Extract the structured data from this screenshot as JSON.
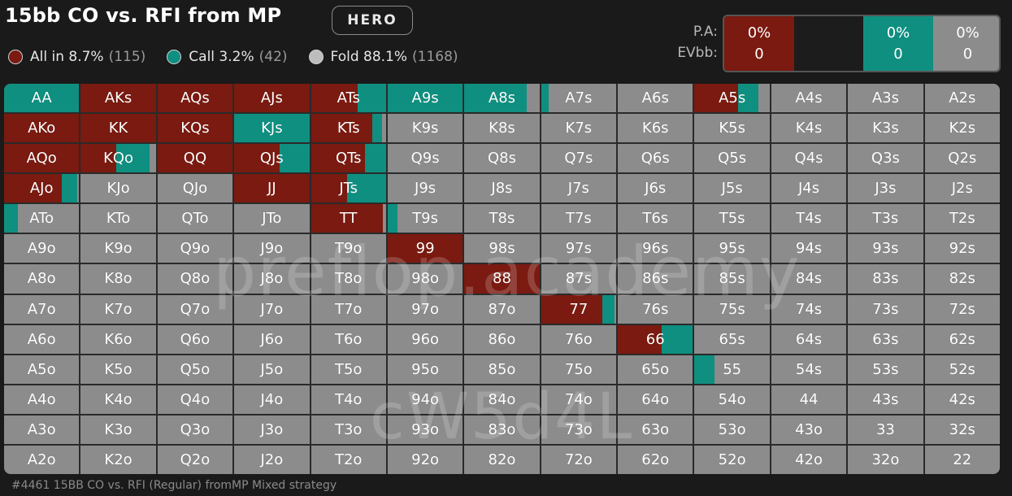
{
  "header": {
    "title": "15bb CO vs. RFI from MP",
    "hero_label": "HERO"
  },
  "legend": [
    {
      "label": "All in 8.7%",
      "count": "(115)",
      "color": "#7a1a10"
    },
    {
      "label": "Call 3.2%",
      "count": "(42)",
      "color": "#0f8f80"
    },
    {
      "label": "Fold 88.1%",
      "count": "(1168)",
      "color": "#bdbdbd"
    }
  ],
  "summary": {
    "pa_label": "P.A:",
    "ev_label": "EVbb:",
    "segments": [
      {
        "pa": "0%",
        "ev": "0",
        "color": "#7a1a10",
        "frac": 0.087
      },
      {
        "pa": "",
        "ev": "",
        "color": "#1c1c1c",
        "frac": 0.0
      },
      {
        "pa": "0%",
        "ev": "0",
        "color": "#0f8f80",
        "frac": 0.032
      },
      {
        "pa": "0%",
        "ev": "0",
        "color": "#8c8c8c",
        "frac": 0.881
      }
    ]
  },
  "colors": {
    "allin": "#7a1a10",
    "call": "#0f8f80",
    "fold": "#8c8c8c"
  },
  "grid": {
    "labels": [
      [
        "AA",
        "AKs",
        "AQs",
        "AJs",
        "ATs",
        "A9s",
        "A8s",
        "A7s",
        "A6s",
        "A5s",
        "A4s",
        "A3s",
        "A2s"
      ],
      [
        "AKo",
        "KK",
        "KQs",
        "KJs",
        "KTs",
        "K9s",
        "K8s",
        "K7s",
        "K6s",
        "K5s",
        "K4s",
        "K3s",
        "K2s"
      ],
      [
        "AQo",
        "KQo",
        "QQ",
        "QJs",
        "QTs",
        "Q9s",
        "Q8s",
        "Q7s",
        "Q6s",
        "Q5s",
        "Q4s",
        "Q3s",
        "Q2s"
      ],
      [
        "AJo",
        "KJo",
        "QJo",
        "JJ",
        "JTs",
        "J9s",
        "J8s",
        "J7s",
        "J6s",
        "J5s",
        "J4s",
        "J3s",
        "J2s"
      ],
      [
        "ATo",
        "KTo",
        "QTo",
        "JTo",
        "TT",
        "T9s",
        "T8s",
        "T7s",
        "T6s",
        "T5s",
        "T4s",
        "T3s",
        "T2s"
      ],
      [
        "A9o",
        "K9o",
        "Q9o",
        "J9o",
        "T9o",
        "99",
        "98s",
        "97s",
        "96s",
        "95s",
        "94s",
        "93s",
        "92s"
      ],
      [
        "A8o",
        "K8o",
        "Q8o",
        "J8o",
        "T8o",
        "98o",
        "88",
        "87s",
        "86s",
        "85s",
        "84s",
        "83s",
        "82s"
      ],
      [
        "A7o",
        "K7o",
        "Q7o",
        "J7o",
        "T7o",
        "97o",
        "87o",
        "77",
        "76s",
        "75s",
        "74s",
        "73s",
        "72s"
      ],
      [
        "A6o",
        "K6o",
        "Q6o",
        "J6o",
        "T6o",
        "96o",
        "86o",
        "76o",
        "66",
        "65s",
        "64s",
        "63s",
        "62s"
      ],
      [
        "A5o",
        "K5o",
        "Q5o",
        "J5o",
        "T5o",
        "95o",
        "85o",
        "75o",
        "65o",
        "55",
        "54s",
        "53s",
        "52s"
      ],
      [
        "A4o",
        "K4o",
        "Q4o",
        "J4o",
        "T4o",
        "94o",
        "84o",
        "74o",
        "64o",
        "54o",
        "44",
        "43s",
        "42s"
      ],
      [
        "A3o",
        "K3o",
        "Q3o",
        "J3o",
        "T3o",
        "93o",
        "83o",
        "73o",
        "63o",
        "53o",
        "43o",
        "33",
        "32s"
      ],
      [
        "A2o",
        "K2o",
        "Q2o",
        "J2o",
        "T2o",
        "92o",
        "82o",
        "72o",
        "62o",
        "52o",
        "42o",
        "32o",
        "22"
      ]
    ],
    "strategy": {
      "AA": {
        "allin": 0.0,
        "call": 1.0
      },
      "AKs": {
        "allin": 1.0,
        "call": 0.0
      },
      "AQs": {
        "allin": 1.0,
        "call": 0.0
      },
      "AJs": {
        "allin": 1.0,
        "call": 0.0
      },
      "ATs": {
        "allin": 0.62,
        "call": 0.38
      },
      "A9s": {
        "allin": 0.0,
        "call": 1.0
      },
      "A8s": {
        "allin": 0.0,
        "call": 0.83
      },
      "A7s": {
        "allin": 0.0,
        "call": 0.1
      },
      "A5s": {
        "allin": 0.58,
        "call": 0.27
      },
      "AKo": {
        "allin": 1.0,
        "call": 0.0
      },
      "KK": {
        "allin": 1.0,
        "call": 0.0
      },
      "KQs": {
        "allin": 1.0,
        "call": 0.0
      },
      "KJs": {
        "allin": 0.0,
        "call": 1.0
      },
      "KTs": {
        "allin": 0.82,
        "call": 0.13
      },
      "AQo": {
        "allin": 1.0,
        "call": 0.0
      },
      "KQo": {
        "allin": 0.47,
        "call": 0.45
      },
      "QQ": {
        "allin": 1.0,
        "call": 0.0
      },
      "QJs": {
        "allin": 0.6,
        "call": 0.4
      },
      "QTs": {
        "allin": 0.72,
        "call": 0.28
      },
      "AJo": {
        "allin": 0.77,
        "call": 0.2
      },
      "JJ": {
        "allin": 1.0,
        "call": 0.0
      },
      "JTs": {
        "allin": 0.48,
        "call": 0.52
      },
      "ATo": {
        "allin": 0.0,
        "call": 0.18
      },
      "TT": {
        "allin": 0.96,
        "call": 0.0
      },
      "T9s": {
        "allin": 0.0,
        "call": 0.13
      },
      "99": {
        "allin": 1.0,
        "call": 0.0
      },
      "88": {
        "allin": 1.0,
        "call": 0.0
      },
      "77": {
        "allin": 0.82,
        "call": 0.16
      },
      "66": {
        "allin": 0.58,
        "call": 0.42
      },
      "55": {
        "allin": 0.0,
        "call": 0.27
      }
    }
  },
  "watermarks": [
    "preflop.academy",
    "cW5d4L"
  ],
  "footer": "#4461 15BB CO vs. RFI (Regular) fromMP Mixed strategy"
}
